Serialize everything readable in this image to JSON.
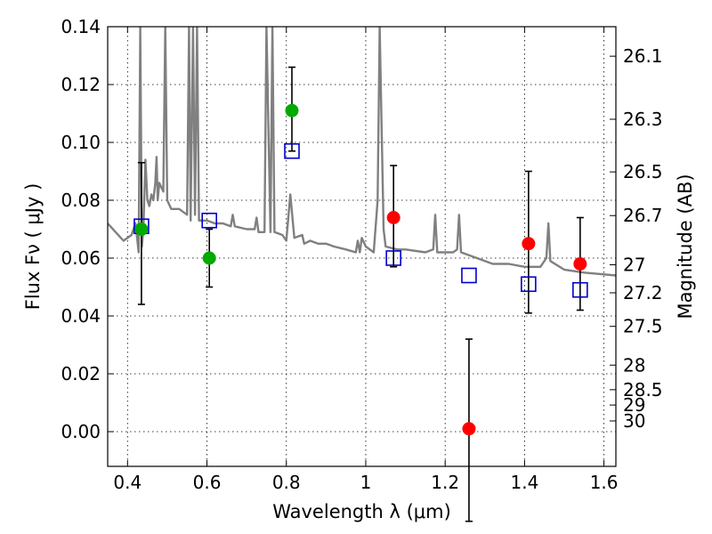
{
  "chart_data": {
    "type": "scatter",
    "title": "",
    "xlabel": "Wavelength  λ (μm)",
    "ylabel": "Flux  Fν  ( μJy )",
    "ylabel_right": "Magnitude (AB)",
    "xlim": [
      0.35,
      1.63
    ],
    "ylim": [
      -0.012,
      0.14
    ],
    "grid": true,
    "x_ticks": [
      {
        "value": 0.4,
        "label": "0.4"
      },
      {
        "value": 0.6,
        "label": "0.6"
      },
      {
        "value": 0.8,
        "label": "0.8"
      },
      {
        "value": 1.0,
        "label": "1"
      },
      {
        "value": 1.2,
        "label": "1.2"
      },
      {
        "value": 1.4,
        "label": "1.4"
      },
      {
        "value": 1.6,
        "label": "1.6"
      }
    ],
    "y_ticks": [
      {
        "value": 0.0,
        "label": "0.00"
      },
      {
        "value": 0.02,
        "label": "0.02"
      },
      {
        "value": 0.04,
        "label": "0.04"
      },
      {
        "value": 0.06,
        "label": "0.06"
      },
      {
        "value": 0.08,
        "label": "0.08"
      },
      {
        "value": 0.1,
        "label": "0.10"
      },
      {
        "value": 0.12,
        "label": "0.12"
      },
      {
        "value": 0.14,
        "label": "0.14"
      }
    ],
    "right_ticks": [
      {
        "flux": 0.1298,
        "label": "26.1"
      },
      {
        "flux": 0.108,
        "label": "26.3"
      },
      {
        "flux": 0.0898,
        "label": "26.5"
      },
      {
        "flux": 0.0747,
        "label": "26.7"
      },
      {
        "flux": 0.0577,
        "label": "27"
      },
      {
        "flux": 0.048,
        "label": "27.2"
      },
      {
        "flux": 0.0364,
        "label": "27.5"
      },
      {
        "flux": 0.023,
        "label": "28"
      },
      {
        "flux": 0.0145,
        "label": "28.5"
      },
      {
        "flux": 0.0092,
        "label": "29"
      },
      {
        "flux": 0.0037,
        "label": "30"
      }
    ],
    "observed_optical": {
      "color": "#00aa00",
      "points": [
        {
          "x": 0.435,
          "y": 0.07,
          "err_lo": 0.044,
          "err_hi": 0.093
        },
        {
          "x": 0.606,
          "y": 0.06,
          "err_lo": 0.05,
          "err_hi": 0.07
        },
        {
          "x": 0.814,
          "y": 0.111,
          "err_lo": 0.097,
          "err_hi": 0.126
        }
      ]
    },
    "observed_nir": {
      "color": "#ff0000",
      "points": [
        {
          "x": 1.07,
          "y": 0.074,
          "err_lo": 0.057,
          "err_hi": 0.092
        },
        {
          "x": 1.26,
          "y": 0.001,
          "err_lo": -0.031,
          "err_hi": 0.032
        },
        {
          "x": 1.41,
          "y": 0.065,
          "err_lo": 0.041,
          "err_hi": 0.09
        },
        {
          "x": 1.54,
          "y": 0.058,
          "err_lo": 0.042,
          "err_hi": 0.074
        }
      ]
    },
    "model_photometry": {
      "color": "#0000cc",
      "points": [
        {
          "x": 0.435,
          "y": 0.071
        },
        {
          "x": 0.606,
          "y": 0.073
        },
        {
          "x": 0.814,
          "y": 0.097
        },
        {
          "x": 1.07,
          "y": 0.06
        },
        {
          "x": 1.26,
          "y": 0.054
        },
        {
          "x": 1.41,
          "y": 0.051
        },
        {
          "x": 1.54,
          "y": 0.049
        }
      ]
    },
    "model_spectrum": {
      "color": "#808080",
      "points": [
        [
          0.35,
          0.072
        ],
        [
          0.37,
          0.069
        ],
        [
          0.39,
          0.066
        ],
        [
          0.41,
          0.068
        ],
        [
          0.42,
          0.072
        ],
        [
          0.428,
          0.062
        ],
        [
          0.432,
          0.14
        ],
        [
          0.436,
          0.064
        ],
        [
          0.44,
          0.07
        ],
        [
          0.445,
          0.094
        ],
        [
          0.45,
          0.08
        ],
        [
          0.455,
          0.078
        ],
        [
          0.46,
          0.082
        ],
        [
          0.465,
          0.08
        ],
        [
          0.47,
          0.086
        ],
        [
          0.473,
          0.095
        ],
        [
          0.476,
          0.08
        ],
        [
          0.48,
          0.086
        ],
        [
          0.49,
          0.083
        ],
        [
          0.495,
          0.14
        ],
        [
          0.5,
          0.08
        ],
        [
          0.51,
          0.077
        ],
        [
          0.53,
          0.077
        ],
        [
          0.55,
          0.075
        ],
        [
          0.555,
          0.14
        ],
        [
          0.559,
          0.073
        ],
        [
          0.565,
          0.14
        ],
        [
          0.57,
          0.075
        ],
        [
          0.575,
          0.14
        ],
        [
          0.58,
          0.073
        ],
        [
          0.6,
          0.073
        ],
        [
          0.62,
          0.072
        ],
        [
          0.64,
          0.072
        ],
        [
          0.66,
          0.071
        ],
        [
          0.665,
          0.075
        ],
        [
          0.67,
          0.071
        ],
        [
          0.7,
          0.07
        ],
        [
          0.72,
          0.07
        ],
        [
          0.725,
          0.074
        ],
        [
          0.73,
          0.069
        ],
        [
          0.745,
          0.069
        ],
        [
          0.75,
          0.14
        ],
        [
          0.76,
          0.069
        ],
        [
          0.765,
          0.14
        ],
        [
          0.77,
          0.069
        ],
        [
          0.79,
          0.068
        ],
        [
          0.8,
          0.066
        ],
        [
          0.81,
          0.082
        ],
        [
          0.82,
          0.067
        ],
        [
          0.84,
          0.068
        ],
        [
          0.845,
          0.065
        ],
        [
          0.86,
          0.066
        ],
        [
          0.88,
          0.065
        ],
        [
          0.9,
          0.065
        ],
        [
          0.92,
          0.064
        ],
        [
          0.95,
          0.063
        ],
        [
          0.975,
          0.062
        ],
        [
          0.98,
          0.066
        ],
        [
          0.985,
          0.062
        ],
        [
          0.99,
          0.067
        ],
        [
          1.0,
          0.064
        ],
        [
          1.02,
          0.062
        ],
        [
          1.03,
          0.08
        ],
        [
          1.035,
          0.14
        ],
        [
          1.045,
          0.07
        ],
        [
          1.05,
          0.064
        ],
        [
          1.08,
          0.063
        ],
        [
          1.1,
          0.063
        ],
        [
          1.15,
          0.062
        ],
        [
          1.17,
          0.063
        ],
        [
          1.175,
          0.075
        ],
        [
          1.18,
          0.062
        ],
        [
          1.22,
          0.062
        ],
        [
          1.23,
          0.063
        ],
        [
          1.235,
          0.075
        ],
        [
          1.24,
          0.062
        ],
        [
          1.28,
          0.06
        ],
        [
          1.32,
          0.058
        ],
        [
          1.36,
          0.058
        ],
        [
          1.4,
          0.057
        ],
        [
          1.44,
          0.057
        ],
        [
          1.455,
          0.06
        ],
        [
          1.46,
          0.072
        ],
        [
          1.465,
          0.059
        ],
        [
          1.5,
          0.056
        ],
        [
          1.55,
          0.055
        ],
        [
          1.63,
          0.054
        ]
      ]
    }
  }
}
